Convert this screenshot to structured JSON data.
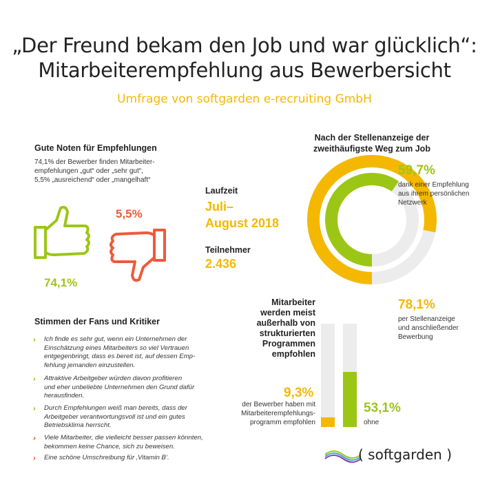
{
  "header": {
    "title_line1": "„Der Freund bekam den Job und war glücklich“:",
    "title_line2": "Mitarbeiterempfehlung aus Bewerbersicht",
    "subtitle": "Umfrage von softgarden e-recruiting GmbH"
  },
  "grades": {
    "heading": "Gute Noten für Empfehlungen",
    "text_line1": "74,1% der Bewerber finden Mitarbeiter-",
    "text_line2": "empfehlungen „gut“ oder „sehr gut“,",
    "text_line3": "5,5% „ausreichend“ oder „mangelhaft“",
    "positive_value": "74,1%",
    "negative_value": "5,5%",
    "colors": {
      "positive": "#9cc616",
      "negative": "#ee5a3a"
    }
  },
  "survey": {
    "runtime_label": "Laufzeit",
    "runtime_line1": "Juli–",
    "runtime_line2": "August 2018",
    "participants_label": "Teilnehmer",
    "participants_value": "2.436"
  },
  "donut": {
    "heading_line1": "Nach der Stellenanzeige der",
    "heading_line2": "zweithäufigste Weg zum Job",
    "inner_value": "59,7%",
    "inner_label_line1": "dank einer Empfehlung",
    "inner_label_line2": "aus ihrem persönlichen",
    "inner_label_line3": "Netzwerk",
    "outer_value": "78,1%",
    "outer_label_line1": "per Stellenanzeige",
    "outer_label_line2": "und anschließender",
    "outer_label_line3": "Bewerbung",
    "inner_fraction": 0.597,
    "outer_fraction": 0.781,
    "colors": {
      "inner": "#9cc616",
      "outer": "#f5b800",
      "track": "#ececec"
    }
  },
  "bars": {
    "heading_line1": "Mitarbeiter",
    "heading_line2": "werden meist",
    "heading_line3": "außerhalb von",
    "heading_line4": "strukturierten",
    "heading_line5": "Programmen",
    "heading_line6": "empfohlen",
    "left_value": "9,3%",
    "left_label_line1": "der Bewerber haben mit",
    "left_label_line2": "Mitarbeiterempfehlungs-",
    "left_label_line3": "programm empfohlen",
    "right_value": "53,1%",
    "right_label": "ohne",
    "left_fraction": 0.093,
    "right_fraction": 0.531,
    "colors": {
      "left": "#f5b800",
      "right": "#9cc616",
      "track": "#ececec"
    }
  },
  "quotes": {
    "heading": "Stimmen der Fans und Kritiker",
    "items": [
      {
        "color": "#9cc616",
        "line1": "Ich finde es sehr gut, wenn ein Unternehmen der",
        "line2": "Einschätzung eines Mitarbeiters so viel Vertrauen",
        "line3": "entgegenbringt, dass es bereit ist, auf dessen Emp-",
        "line4": "fehlung jemanden einzustellen."
      },
      {
        "color": "#9cc616",
        "line1": "Attraktive Arbeitgeber würden davon profitieren",
        "line2": "und eher unbeliebte Unternehmen den Grund dafür",
        "line3": "herausfinden."
      },
      {
        "color": "#9cc616",
        "line1": "Durch Empfehlungen weiß man bereits, dass der",
        "line2": "Arbeitgeber verantwortungsvoll ist und ein gutes",
        "line3": "Betriebsklima herrscht."
      },
      {
        "color": "#ee5a3a",
        "line1": "Viele Mitarbeiter, die vielleicht besser passen könnten,",
        "line2": "bekommen keine Chance, sich zu beweisen."
      },
      {
        "color": "#ee5a3a",
        "line1": "Eine schöne Umschreibung für ‚Vitamin B‘."
      }
    ]
  },
  "logo": {
    "text": "( softgarden )"
  }
}
